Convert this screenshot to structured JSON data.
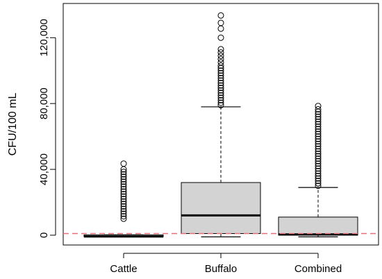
{
  "chart_data": {
    "type": "box",
    "title": "",
    "xlabel": "",
    "ylabel": "CFU/100 mL",
    "ylim": [
      -3000,
      137000
    ],
    "y_ticks": [
      {
        "value": 0,
        "label": "0"
      },
      {
        "value": 40000,
        "label": "40,000"
      },
      {
        "value": 80000,
        "label": "80,000"
      },
      {
        "value": 120000,
        "label": "120,000"
      }
    ],
    "categories": [
      "Cattle",
      "Buffalo",
      "Combined"
    ],
    "boxes": [
      {
        "category": "Cattle",
        "whisker_low": -1000,
        "q1": -1000,
        "median": -800,
        "q3": 200,
        "whisker_high": 200,
        "outliers": [
          10000,
          11500,
          13000,
          14500,
          16000,
          17500,
          19000,
          20500,
          22000,
          23500,
          25000,
          26500,
          28000,
          29500,
          31000,
          32500,
          34000,
          35500,
          37000,
          38500,
          40000,
          43500
        ]
      },
      {
        "category": "Buffalo",
        "whisker_low": -1000,
        "q1": 1000,
        "median": 12000,
        "q3": 32000,
        "whisker_high": 78000,
        "outliers": [
          79000,
          80500,
          82000,
          83500,
          85000,
          86500,
          88000,
          89500,
          91000,
          92500,
          94000,
          95500,
          97000,
          98500,
          100000,
          101500,
          103000,
          105000,
          107000,
          109000,
          111000,
          113000,
          120000,
          125500,
          129000,
          133500
        ]
      },
      {
        "category": "Combined",
        "whisker_low": -1000,
        "q1": 0,
        "median": 500,
        "q3": 11000,
        "whisker_high": 29000,
        "outliers": [
          30000,
          31500,
          33000,
          34500,
          36000,
          37500,
          39000,
          40500,
          42000,
          43500,
          45000,
          46500,
          48000,
          49500,
          51000,
          52500,
          54000,
          55500,
          57000,
          58500,
          60000,
          61500,
          63000,
          64500,
          66000,
          67500,
          69000,
          70500,
          72000,
          73500,
          75000,
          76500,
          78500
        ]
      }
    ],
    "reference_line": {
      "value": 1000,
      "color": "#e0707a",
      "style": "dashed"
    },
    "box_fill": "#d3d3d3",
    "grid": false,
    "legend": "none"
  }
}
